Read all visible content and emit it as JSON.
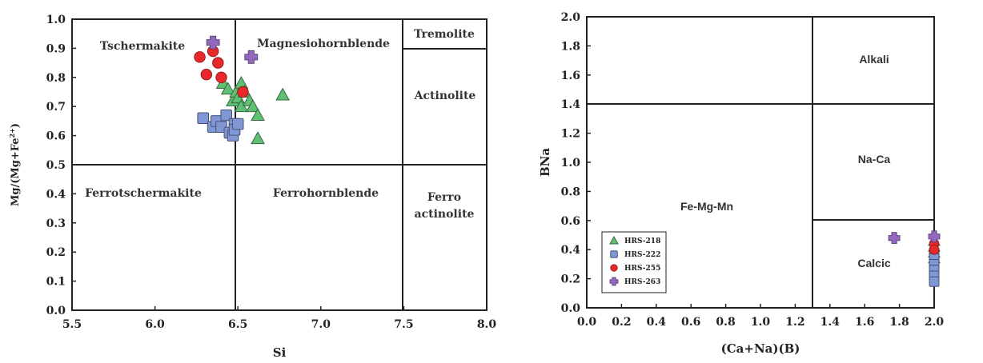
{
  "chart_data": [
    {
      "type": "scatter",
      "xlabel": "Si",
      "ylabel": "Mg/(Mg+Fe",
      "ylabel_sup": "2+",
      "ylabel_end": ")",
      "xlim": [
        5.5,
        8.0
      ],
      "ylim": [
        0.0,
        1.0
      ],
      "xticks": [
        "5.5",
        "6.0",
        "6.5",
        "7.0",
        "7.5",
        "8.0"
      ],
      "yticks": [
        "0.0",
        "0.1",
        "0.2",
        "0.3",
        "0.4",
        "0.5",
        "0.6",
        "0.7",
        "0.8",
        "0.9",
        "1.0"
      ],
      "regions": [
        "Tschermakite",
        "Magnesiohornblende",
        "Tremolite",
        "Actinolite",
        "Ferrotschermakite",
        "Ferrohornblende",
        "Ferro",
        "actinolite"
      ],
      "boundaries": {
        "si": [
          6.5,
          7.5
        ],
        "mg": [
          0.5,
          0.9
        ]
      },
      "series": [
        {
          "name": "HRS-218",
          "marker": "triangle",
          "color": "#5fbf73",
          "x": [
            6.41,
            6.44,
            6.47,
            6.49,
            6.5,
            6.52,
            6.52,
            6.54,
            6.57,
            6.59,
            6.62,
            6.62,
            6.77
          ],
          "y": [
            0.78,
            0.76,
            0.72,
            0.75,
            0.73,
            0.7,
            0.78,
            0.75,
            0.72,
            0.7,
            0.67,
            0.59,
            0.74
          ]
        },
        {
          "name": "HRS-222",
          "marker": "square",
          "color": "#7f97d4",
          "x": [
            6.29,
            6.35,
            6.37,
            6.4,
            6.43,
            6.45,
            6.47,
            6.48,
            6.48,
            6.5
          ],
          "y": [
            0.66,
            0.63,
            0.65,
            0.63,
            0.67,
            0.61,
            0.6,
            0.64,
            0.62,
            0.64
          ]
        },
        {
          "name": "HRS-255",
          "marker": "circle",
          "color": "#e8282b",
          "x": [
            6.27,
            6.31,
            6.35,
            6.38,
            6.4,
            6.53
          ],
          "y": [
            0.87,
            0.81,
            0.89,
            0.85,
            0.8,
            0.75
          ]
        },
        {
          "name": "HRS-263",
          "marker": "plus",
          "color": "#9168bd",
          "x": [
            6.35,
            6.58
          ],
          "y": [
            0.92,
            0.87
          ]
        }
      ]
    },
    {
      "type": "scatter",
      "xlabel": "(Ca+Na)(B)",
      "ylabel": "BNa",
      "xlim": [
        0.0,
        2.0
      ],
      "ylim": [
        0.0,
        2.0
      ],
      "xticks": [
        "0.0",
        "0.2",
        "0.4",
        "0.6",
        "0.8",
        "1.0",
        "1.2",
        "1.4",
        "1.6",
        "1.8",
        "2.0"
      ],
      "yticks": [
        "0.0",
        "0.2",
        "0.4",
        "0.6",
        "0.8",
        "1.0",
        "1.2",
        "1.4",
        "1.6",
        "1.8",
        "2.0"
      ],
      "regions": [
        "Alkali",
        "Na-Ca",
        "Fe-Mg-Mn",
        "Calcic"
      ],
      "boundaries": {
        "cana": 1.3,
        "bna_left": 1.4,
        "bna_right": 0.6
      },
      "legend": {
        "position": "bottom-left",
        "entries": [
          "HRS-218",
          "HRS-222",
          "HRS-255",
          "HRS-263"
        ]
      },
      "series": [
        {
          "name": "HRS-218",
          "marker": "triangle",
          "color": "#5fbf73",
          "x": [
            2.0,
            2.0,
            2.0,
            2.0
          ],
          "y": [
            0.46,
            0.42,
            0.38,
            0.34
          ]
        },
        {
          "name": "HRS-222",
          "marker": "square",
          "color": "#7f97d4",
          "x": [
            2.0,
            2.0,
            2.0,
            2.0,
            2.0,
            2.0
          ],
          "y": [
            0.38,
            0.34,
            0.3,
            0.26,
            0.22,
            0.18
          ]
        },
        {
          "name": "HRS-255",
          "marker": "circle",
          "color": "#e8282b",
          "x": [
            2.0,
            2.0
          ],
          "y": [
            0.44,
            0.4
          ]
        },
        {
          "name": "HRS-263",
          "marker": "plus",
          "color": "#9168bd",
          "x": [
            1.77,
            2.0
          ],
          "y": [
            0.48,
            0.49
          ]
        }
      ]
    }
  ]
}
